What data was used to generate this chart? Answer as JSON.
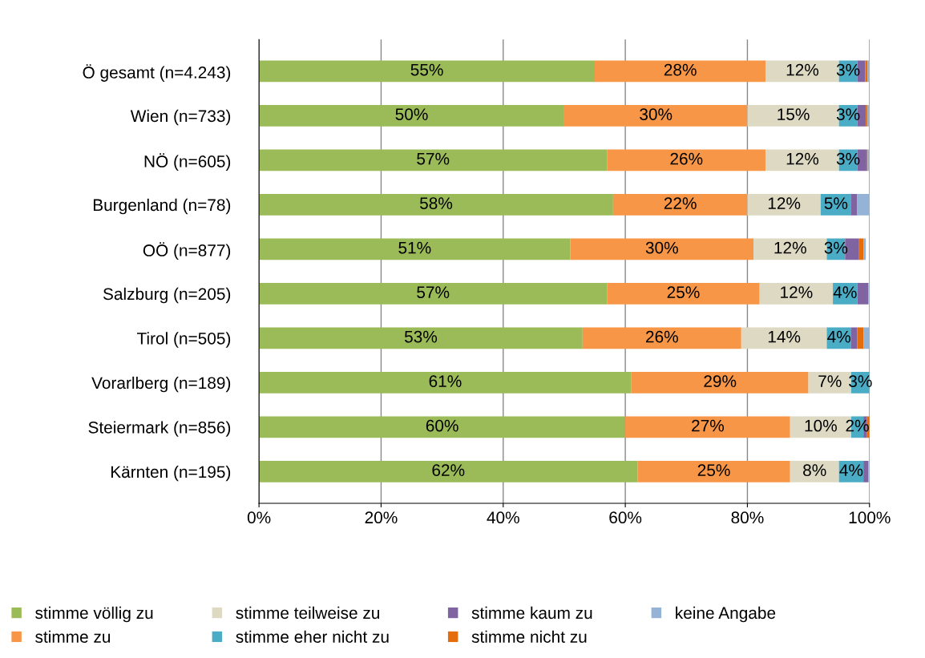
{
  "chart_data": {
    "type": "bar",
    "orientation": "horizontal",
    "stacked": true,
    "categories": [
      "Ö gesamt (n=4.243)",
      "Wien (n=733)",
      "NÖ (n=605)",
      "Burgenland (n=78)",
      "OÖ (n=877)",
      "Salzburg (n=205)",
      "Tirol (n=505)",
      "Vorarlberg (n=189)",
      "Steiermark (n=856)",
      "Kärnten (n=195)"
    ],
    "series": [
      {
        "name": "stimme völlig zu",
        "color": "#9bbb59",
        "values": [
          55,
          50,
          57,
          58,
          51,
          57,
          53,
          61,
          60,
          62
        ],
        "value_labels": [
          "55%",
          "50%",
          "57%",
          "58%",
          "51%",
          "57%",
          "53%",
          "61%",
          "60%",
          "62%"
        ]
      },
      {
        "name": "stimme zu",
        "color": "#f79646",
        "values": [
          28,
          30,
          26,
          22,
          30,
          25,
          26,
          29,
          27,
          25
        ],
        "value_labels": [
          "28%",
          "30%",
          "26%",
          "22%",
          "30%",
          "25%",
          "26%",
          "29%",
          "27%",
          "25%"
        ]
      },
      {
        "name": "stimme teilweise zu",
        "color": "#ddd9c3",
        "values": [
          12,
          15,
          12,
          12,
          12,
          12,
          14,
          7,
          10,
          8
        ],
        "value_labels": [
          "12%",
          "15%",
          "12%",
          "12%",
          "12%",
          "12%",
          "14%",
          "7%",
          "10%",
          "8%"
        ]
      },
      {
        "name": "stimme eher nicht zu",
        "color": "#4bacc6",
        "values": [
          3,
          3,
          3,
          5,
          3,
          4,
          4,
          3,
          2,
          4
        ],
        "value_labels": [
          "3%",
          "3%",
          "3%",
          "5%",
          "3%",
          "4%",
          "4%",
          "3%",
          "2%",
          "4%"
        ]
      },
      {
        "name": "stimme kaum zu",
        "color": "#8064a2",
        "values": [
          1.3,
          1.4,
          1.5,
          1,
          2.2,
          1.8,
          1,
          0,
          0.6,
          0.8
        ],
        "value_labels": [
          null,
          null,
          null,
          null,
          null,
          null,
          null,
          null,
          null,
          null
        ]
      },
      {
        "name": "stimme nicht zu",
        "color": "#e46c0a",
        "values": [
          0.4,
          0.3,
          0.2,
          0,
          0.8,
          0,
          1,
          0,
          0.4,
          0
        ],
        "value_labels": [
          null,
          null,
          null,
          null,
          null,
          null,
          null,
          null,
          null,
          null
        ]
      },
      {
        "name": "keine Angabe",
        "color": "#95b3d7",
        "values": [
          0.3,
          0.3,
          0.3,
          2,
          0.4,
          0.4,
          1,
          0,
          0,
          0.3
        ],
        "value_labels": [
          null,
          null,
          null,
          null,
          null,
          null,
          null,
          null,
          null,
          null
        ]
      }
    ],
    "xlim": [
      0,
      100
    ],
    "xticks": [
      {
        "value": 0,
        "label": "0%"
      },
      {
        "value": 20,
        "label": "20%"
      },
      {
        "value": 40,
        "label": "40%"
      },
      {
        "value": 60,
        "label": "60%"
      },
      {
        "value": 80,
        "label": "80%"
      },
      {
        "value": 100,
        "label": "100%"
      }
    ],
    "grid": "x",
    "legend": "bottom"
  }
}
